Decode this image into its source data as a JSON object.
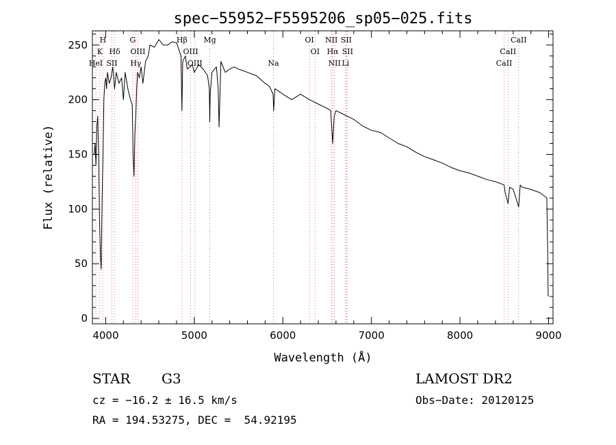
{
  "chart_data": {
    "type": "line",
    "title": "spec−55952−F5595206_sp05−025.fits",
    "xlabel": "Wavelength (Å)",
    "ylabel": "Flux (relative)",
    "xlim": [
      3850,
      9050
    ],
    "ylim": [
      -5,
      263
    ],
    "xticks": [
      4000,
      5000,
      6000,
      7000,
      8000,
      9000
    ],
    "yticks": [
      0,
      50,
      100,
      150,
      200,
      250
    ],
    "grid": false,
    "series": [
      {
        "name": "flux",
        "x": [
          3870,
          3880,
          3890,
          3900,
          3910,
          3920,
          3930,
          3940,
          3950,
          3960,
          3970,
          3980,
          3990,
          4000,
          4010,
          4020,
          4040,
          4060,
          4080,
          4100,
          4120,
          4150,
          4180,
          4200,
          4220,
          4250,
          4280,
          4300,
          4310,
          4320,
          4330,
          4340,
          4350,
          4360,
          4380,
          4400,
          4420,
          4450,
          4480,
          4500,
          4550,
          4600,
          4650,
          4700,
          4750,
          4800,
          4850,
          4861,
          4870,
          4900,
          4920,
          4950,
          4980,
          5000,
          5050,
          5100,
          5150,
          5170,
          5175,
          5180,
          5200,
          5250,
          5270,
          5280,
          5300,
          5350,
          5400,
          5450,
          5500,
          5600,
          5700,
          5800,
          5850,
          5890,
          5896,
          5910,
          5950,
          6000,
          6100,
          6200,
          6300,
          6400,
          6500,
          6540,
          6563,
          6580,
          6600,
          6700,
          6800,
          6900,
          7000,
          7100,
          7200,
          7300,
          7400,
          7500,
          7600,
          7700,
          7800,
          7900,
          8000,
          8100,
          8200,
          8300,
          8400,
          8498,
          8510,
          8542,
          8560,
          8600,
          8662,
          8680,
          8700,
          8800,
          8900,
          8950,
          8980,
          8990,
          8995
        ],
        "y": [
          150,
          160,
          140,
          175,
          185,
          150,
          90,
          60,
          45,
          110,
          150,
          200,
          215,
          220,
          210,
          225,
          215,
          220,
          230,
          210,
          225,
          215,
          220,
          200,
          225,
          210,
          200,
          195,
          150,
          130,
          170,
          185,
          210,
          225,
          220,
          230,
          215,
          235,
          240,
          250,
          248,
          255,
          250,
          250,
          253,
          252,
          240,
          190,
          235,
          240,
          228,
          230,
          232,
          225,
          232,
          228,
          222,
          210,
          180,
          205,
          225,
          230,
          210,
          175,
          235,
          225,
          228,
          230,
          228,
          225,
          222,
          215,
          212,
          205,
          190,
          210,
          208,
          205,
          200,
          205,
          200,
          196,
          192,
          190,
          160,
          185,
          190,
          186,
          182,
          176,
          172,
          170,
          165,
          160,
          157,
          152,
          148,
          145,
          142,
          138,
          135,
          133,
          130,
          127,
          125,
          122,
          115,
          105,
          120,
          118,
          102,
          122,
          120,
          118,
          115,
          112,
          110,
          60,
          20
        ]
      }
    ],
    "spectral_lines": [
      {
        "label": "H",
        "x": 3969,
        "row": 0
      },
      {
        "label": "K",
        "x": 3934,
        "row": 1
      },
      {
        "label": "HeI",
        "x": 3889,
        "row": 2
      },
      {
        "label": "Hδ",
        "x": 4102,
        "row": 1
      },
      {
        "label": "SII",
        "x": 4070,
        "row": 2
      },
      {
        "label": "G",
        "x": 4305,
        "row": 0
      },
      {
        "label": "OIII",
        "x": 4363,
        "row": 1
      },
      {
        "label": "Hγ",
        "x": 4340,
        "row": 2
      },
      {
        "label": "Hβ",
        "x": 4861,
        "row": 0
      },
      {
        "label": "OIII",
        "x": 4959,
        "row": 1
      },
      {
        "label": "OIII",
        "x": 5007,
        "row": 2
      },
      {
        "label": "Mg",
        "x": 5175,
        "row": 0
      },
      {
        "label": "Na",
        "x": 5893,
        "row": 2
      },
      {
        "label": "OI",
        "x": 6300,
        "row": 0
      },
      {
        "label": "OI",
        "x": 6364,
        "row": 1
      },
      {
        "label": "NII",
        "x": 6548,
        "row": 0
      },
      {
        "label": "Hα",
        "x": 6563,
        "row": 1
      },
      {
        "label": "NII",
        "x": 6583,
        "row": 2
      },
      {
        "label": "SII",
        "x": 6716,
        "row": 0
      },
      {
        "label": "SII",
        "x": 6731,
        "row": 1
      },
      {
        "label": "Li",
        "x": 6708,
        "row": 2
      },
      {
        "label": "CaII",
        "x": 8662,
        "row": 0
      },
      {
        "label": "CaII",
        "x": 8542,
        "row": 1
      },
      {
        "label": "CaII",
        "x": 8498,
        "row": 2
      }
    ]
  },
  "info": {
    "object_class": "STAR",
    "subclass": "G3",
    "survey": "LAMOST DR2",
    "redshift": "cz = −16.2 ± 16.5 km/s",
    "obs_date": "Obs−Date: 20120125",
    "coords": "RA = 194.53275, DEC =  54.92195"
  }
}
